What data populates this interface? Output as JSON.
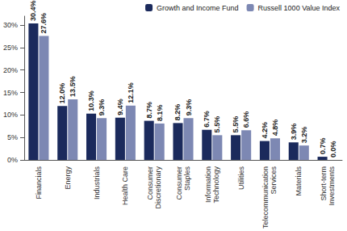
{
  "chart_data": {
    "type": "bar",
    "categories": [
      "Financials",
      "Energy",
      "Industrials",
      "Health Care",
      "Consumer Discretionary",
      "Consumer Staples",
      "Information Technology",
      "Utilities",
      "Telecommunication Services",
      "Materials",
      "Short-term Investments"
    ],
    "series": [
      {
        "name": "Growth and Income Fund",
        "color": "#1b2a5c",
        "values": [
          30.4,
          12.0,
          10.3,
          9.4,
          8.7,
          8.2,
          6.7,
          5.5,
          4.2,
          3.9,
          0.7
        ],
        "value_labels": [
          "30.4%",
          "12.0%",
          "10.3%",
          "9.4%",
          "8.7%",
          "8.2%",
          "6.7%",
          "5.5%",
          "4.2%",
          "3.9%",
          "0.7%"
        ]
      },
      {
        "name": "Russell 1000 Value Index",
        "color": "#7d88b3",
        "values": [
          27.6,
          13.5,
          9.3,
          12.1,
          8.1,
          9.3,
          5.5,
          6.6,
          4.8,
          3.2,
          0.0
        ],
        "value_labels": [
          "27.6%",
          "13.5%",
          "9.3%",
          "12.1%",
          "8.1%",
          "9.3%",
          "5.5%",
          "6.6%",
          "4.8%",
          "3.2%",
          "0.0%"
        ]
      }
    ],
    "ylim": [
      0,
      32
    ],
    "yticks": [
      {
        "value": 0,
        "label": "0%"
      },
      {
        "value": 5,
        "label": "5%"
      },
      {
        "value": 10,
        "label": "10%"
      },
      {
        "value": 15,
        "label": "15%"
      },
      {
        "value": 20,
        "label": "20%"
      },
      {
        "value": 25,
        "label": "25%"
      },
      {
        "value": 30,
        "label": "30%"
      }
    ],
    "grid": false,
    "legend": "top-right",
    "data_labels": true
  }
}
